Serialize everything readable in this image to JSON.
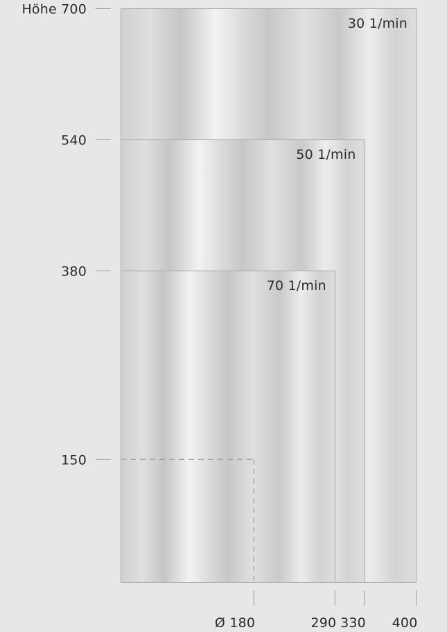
{
  "chart_data": {
    "type": "diagram",
    "x_unit_label": "Ø",
    "y_unit_label": "Höhe",
    "areas": [
      {
        "speed_label": "30 1/min",
        "max_diameter": 400,
        "max_height": 700
      },
      {
        "speed_label": "50 1/min",
        "max_diameter": 330,
        "max_height": 540
      },
      {
        "speed_label": "70 1/min",
        "max_diameter": 290,
        "max_height": 380
      }
    ],
    "dashed_region": {
      "diameter": 180,
      "height": 150
    },
    "y_ticks": [
      {
        "value": 700,
        "label": "Höhe 700"
      },
      {
        "value": 540,
        "label": "540"
      },
      {
        "value": 380,
        "label": "380"
      },
      {
        "value": 150,
        "label": "150"
      }
    ],
    "x_ticks": [
      {
        "value": 180,
        "label": "Ø 180"
      },
      {
        "value": 290,
        "label": "290"
      },
      {
        "value": 330,
        "label": "330"
      },
      {
        "value": 400,
        "label": "400"
      }
    ]
  },
  "colors": {
    "background": "#e7e7e8",
    "border": "#a8a8a8",
    "tick": "#9a9a9a",
    "dashed": "#9a9a9a",
    "text": "#2c2c2c"
  }
}
